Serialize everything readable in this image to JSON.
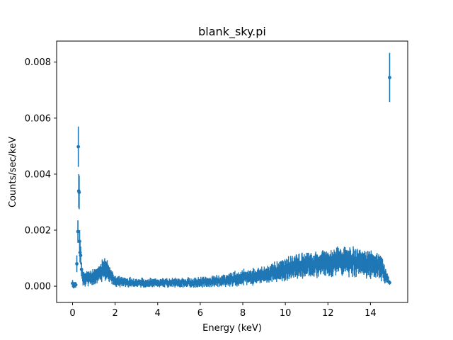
{
  "chart_data": {
    "type": "scatter",
    "title": "blank_sky.pi",
    "xlabel": "Energy (keV)",
    "ylabel": "Counts/sec/keV",
    "xlim": [
      -0.75,
      15.75
    ],
    "ylim": [
      -0.00058,
      0.00875
    ],
    "xticks": [
      0,
      2,
      4,
      6,
      8,
      10,
      12,
      14
    ],
    "xtick_labels": [
      "0",
      "2",
      "4",
      "6",
      "8",
      "10",
      "12",
      "14"
    ],
    "yticks": [
      0.0,
      0.002,
      0.004,
      0.006,
      0.008
    ],
    "ytick_labels": [
      "0.000",
      "0.002",
      "0.004",
      "0.006",
      "0.008"
    ],
    "grid": false,
    "legend": "none",
    "color": "#1f77b4",
    "series": [
      {
        "points": [
          {
            "x": 0.0,
            "y": 0.0001,
            "err": 0.00012
          },
          {
            "x": 0.05,
            "y": 0.0,
            "err": 8e-05
          },
          {
            "x": 0.1,
            "y": 5e-05,
            "err": 0.0001
          },
          {
            "x": 0.15,
            "y": 5e-05,
            "err": 0.0001
          },
          {
            "x": 0.2,
            "y": 0.0008,
            "err": 0.0003
          },
          {
            "x": 0.25,
            "y": 0.00195,
            "err": 0.0004
          },
          {
            "x": 0.27,
            "y": 0.00498,
            "err": 0.00072
          },
          {
            "x": 0.29,
            "y": 0.0034,
            "err": 0.0006
          },
          {
            "x": 0.31,
            "y": 0.00335,
            "err": 0.0006
          },
          {
            "x": 0.33,
            "y": 0.0016,
            "err": 0.0004
          },
          {
            "x": 0.35,
            "y": 0.0012,
            "err": 0.00035
          },
          {
            "x": 0.38,
            "y": 0.0011,
            "err": 0.00032
          },
          {
            "x": 0.42,
            "y": 0.0006,
            "err": 0.00025
          },
          {
            "x": 0.5,
            "y": 0.0003,
            "err": 0.0002
          },
          {
            "x": 0.75,
            "y": 0.0003,
            "err": 0.0002
          },
          {
            "x": 1.0,
            "y": 0.0003,
            "err": 0.0002
          },
          {
            "x": 1.5,
            "y": 0.00065,
            "err": 0.0003
          },
          {
            "x": 2.0,
            "y": 0.00018,
            "err": 0.00015
          },
          {
            "x": 3.0,
            "y": 0.00012,
            "err": 0.00012
          },
          {
            "x": 4.0,
            "y": 0.00012,
            "err": 0.00012
          },
          {
            "x": 5.0,
            "y": 0.00012,
            "err": 0.00012
          },
          {
            "x": 6.0,
            "y": 0.00013,
            "err": 0.00013
          },
          {
            "x": 7.0,
            "y": 0.0002,
            "err": 0.00015
          },
          {
            "x": 8.0,
            "y": 0.0003,
            "err": 0.0002
          },
          {
            "x": 8.5,
            "y": 0.00035,
            "err": 0.0002
          },
          {
            "x": 9.0,
            "y": 0.0004,
            "err": 0.00022
          },
          {
            "x": 9.5,
            "y": 0.0005,
            "err": 0.00025
          },
          {
            "x": 10.0,
            "y": 0.0006,
            "err": 0.0003
          },
          {
            "x": 10.5,
            "y": 0.0007,
            "err": 0.0003
          },
          {
            "x": 11.0,
            "y": 0.00075,
            "err": 0.00032
          },
          {
            "x": 11.5,
            "y": 0.0008,
            "err": 0.00033
          },
          {
            "x": 12.0,
            "y": 0.00085,
            "err": 0.00035
          },
          {
            "x": 12.5,
            "y": 0.0009,
            "err": 0.00036
          },
          {
            "x": 13.0,
            "y": 0.0009,
            "err": 0.00036
          },
          {
            "x": 13.5,
            "y": 0.00085,
            "err": 0.00035
          },
          {
            "x": 14.0,
            "y": 0.0008,
            "err": 0.00035
          },
          {
            "x": 14.5,
            "y": 0.0007,
            "err": 0.00033
          },
          {
            "x": 14.9,
            "y": 0.00013,
            "err": 8e-05
          },
          {
            "x": 14.9,
            "y": 0.00745,
            "err": 0.00088
          }
        ]
      }
    ]
  }
}
